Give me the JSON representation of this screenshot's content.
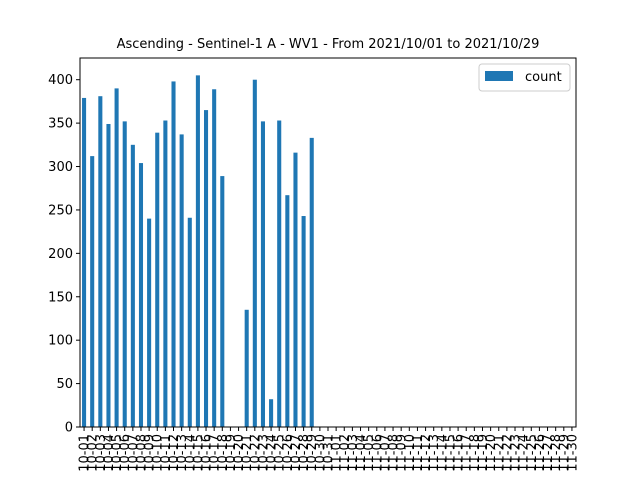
{
  "chart_data": {
    "type": "bar",
    "title": "Ascending - Sentinel-1 A - WV1 - From 2021/10/01 to 2021/10/29",
    "xlabel": "",
    "ylabel": "",
    "ylim": [
      0,
      425
    ],
    "yticks": [
      0,
      50,
      100,
      150,
      200,
      250,
      300,
      350,
      400
    ],
    "grid": false,
    "legend_position": "top-right",
    "bar_color": "#1f77b4",
    "categories": [
      "10-01",
      "10-02",
      "10-03",
      "10-04",
      "10-05",
      "10-06",
      "10-07",
      "10-08",
      "10-09",
      "10-10",
      "10-11",
      "10-12",
      "10-13",
      "10-14",
      "10-15",
      "10-16",
      "10-17",
      "10-18",
      "10-19",
      "10-20",
      "10-21",
      "10-22",
      "10-23",
      "10-24",
      "10-25",
      "10-26",
      "10-27",
      "10-28",
      "10-29",
      "10-30",
      "10-31",
      "11-01",
      "11-02",
      "11-03",
      "11-04",
      "11-05",
      "11-06",
      "11-07",
      "11-08",
      "11-09",
      "11-10",
      "11-11",
      "11-12",
      "11-13",
      "11-14",
      "11-15",
      "11-16",
      "11-17",
      "11-18",
      "11-19",
      "11-20",
      "11-21",
      "11-22",
      "11-23",
      "11-24",
      "11-25",
      "11-26",
      "11-27",
      "11-28",
      "11-29",
      "11-30"
    ],
    "series": [
      {
        "name": "count",
        "values": [
          379,
          312,
          381,
          349,
          390,
          352,
          325,
          304,
          240,
          339,
          353,
          398,
          337,
          241,
          405,
          365,
          389,
          289,
          0,
          0,
          135,
          400,
          352,
          32,
          353,
          267,
          316,
          243,
          333,
          0,
          0,
          0,
          0,
          0,
          0,
          0,
          0,
          0,
          0,
          0,
          0,
          0,
          0,
          0,
          0,
          0,
          0,
          0,
          0,
          0,
          0,
          0,
          0,
          0,
          0,
          0,
          0,
          0,
          0,
          0,
          0
        ]
      }
    ]
  }
}
